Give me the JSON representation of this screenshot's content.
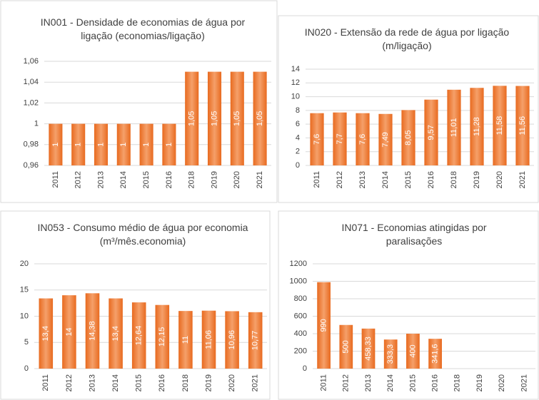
{
  "chart_data": [
    {
      "type": "bar",
      "title": "IN001 - Densidade de economias de água por ligação (economias/ligação)",
      "categories": [
        "2011",
        "2012",
        "2013",
        "2014",
        "2015",
        "2016",
        "2018",
        "2019",
        "2020",
        "2021"
      ],
      "values": [
        1,
        1,
        1,
        1,
        1,
        1,
        1.05,
        1.05,
        1.05,
        1.05
      ],
      "value_labels": [
        "1",
        "1",
        "1",
        "1",
        "1",
        "1",
        "1,05",
        "1,05",
        "1,05",
        "1,05"
      ],
      "color": "#ec7b34",
      "ylim": [
        0.96,
        1.06
      ],
      "yticks": [
        {
          "value": 0.96,
          "label": "0,96"
        },
        {
          "value": 0.98,
          "label": "0,98"
        },
        1,
        {
          "value": 1.02,
          "label": "1,02"
        },
        {
          "value": 1.04,
          "label": "1,04"
        },
        {
          "value": 1.06,
          "label": "1,06"
        }
      ],
      "grid": true
    },
    {
      "type": "bar",
      "title": "IN020 - Extensão da rede de água por ligação (m/ligação)",
      "categories": [
        "2011",
        "2012",
        "2013",
        "2014",
        "2015",
        "2016",
        "2018",
        "2019",
        "2020",
        "2021"
      ],
      "values": [
        7.6,
        7.7,
        7.6,
        7.49,
        8.05,
        9.57,
        11.01,
        11.28,
        11.58,
        11.56
      ],
      "value_labels": [
        "7,6",
        "7,7",
        "7,6",
        "7,49",
        "8,05",
        "9,57",
        "11,01",
        "11,28",
        "11,58",
        "11,56"
      ],
      "color": "#ec7b34",
      "ylim": [
        0,
        14
      ],
      "yticks": [
        0,
        2,
        4,
        6,
        8,
        10,
        12,
        14
      ],
      "grid": true
    },
    {
      "type": "bar",
      "title": "IN053 - Consumo médio de água por economia (m³/mês.economia)",
      "categories": [
        "2011",
        "2012",
        "2013",
        "2014",
        "2015",
        "2016",
        "2018",
        "2019",
        "2020",
        "2021"
      ],
      "values": [
        13.4,
        14,
        14.38,
        13.4,
        12.64,
        12.15,
        11,
        11.06,
        10.96,
        10.77
      ],
      "value_labels": [
        "13,4",
        "14",
        "14,38",
        "13,4",
        "12,64",
        "12,15",
        "11",
        "11,06",
        "10,96",
        "10,77"
      ],
      "color": "#ec7b34",
      "ylim": [
        0,
        20
      ],
      "yticks": [
        0,
        5,
        10,
        15,
        20
      ],
      "grid": true
    },
    {
      "type": "bar",
      "title": "IN071 - Economias atingidas por paralisações",
      "categories": [
        "2011",
        "2012",
        "2013",
        "2014",
        "2015",
        "2016",
        "2018",
        "2019",
        "2020",
        "2021"
      ],
      "values": [
        990,
        500,
        458.33,
        333.3,
        400,
        341.6,
        null,
        null,
        null,
        null
      ],
      "value_labels": [
        "990",
        "500",
        "458,33",
        "333,3",
        "400",
        "341,6",
        null,
        null,
        null,
        null
      ],
      "color": "#ec7b34",
      "ylim": [
        0,
        1200
      ],
      "yticks": [
        0,
        200,
        400,
        600,
        800,
        1000,
        1200
      ],
      "grid": true
    }
  ]
}
